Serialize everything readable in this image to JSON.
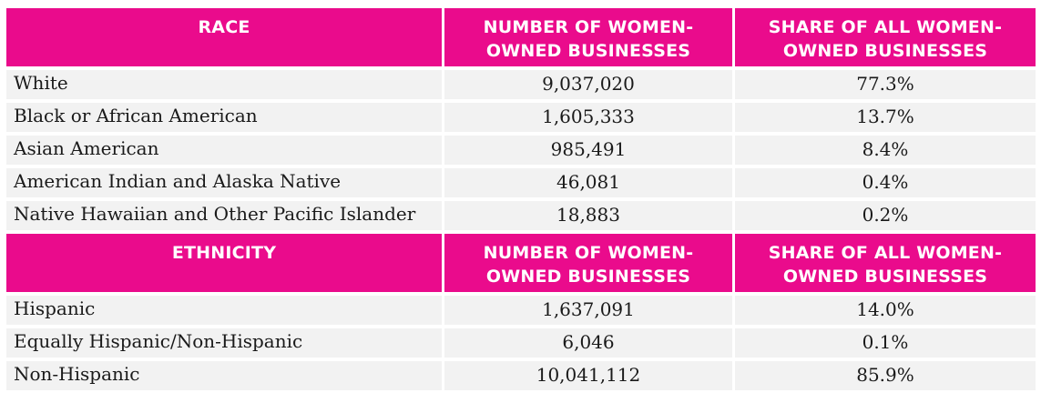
{
  "race_header": {
    "col1": "RACE",
    "col2_line1": "NUMBER OF WOMEN-",
    "col2_line2": "OWNED BUSINESSES",
    "col3_line1": "SHARE OF ALL WOMEN-",
    "col3_line2": "OWNED BUSINESSES"
  },
  "race_rows": [
    {
      "name": "White",
      "number": "9,037,020",
      "share": "77.3%"
    },
    {
      "name": "Black or African American",
      "number": "1,605,333",
      "share": "13.7%"
    },
    {
      "name": "Asian American",
      "number": "985,491",
      "share": "8.4%"
    },
    {
      "name": "American Indian and Alaska Native",
      "number": "46,081",
      "share": "0.4%"
    },
    {
      "name": "Native Hawaiian and Other Pacific Islander",
      "number": "18,883",
      "share": "0.2%"
    }
  ],
  "ethnicity_header": {
    "col1": "ETHNICITY",
    "col2_line1": "NUMBER OF WOMEN-",
    "col2_line2": "OWNED BUSINESSES",
    "col3_line1": "SHARE OF ALL WOMEN-",
    "col3_line2": "OWNED BUSINESSES"
  },
  "ethnicity_rows": [
    {
      "name": "Hispanic",
      "number": "1,637,091",
      "share": "14.0%"
    },
    {
      "name": "Equally Hispanic/Non-Hispanic",
      "number": "6,046",
      "share": "0.1%"
    },
    {
      "name": "Non-Hispanic",
      "number": "10,041,112",
      "share": "85.9%"
    }
  ],
  "colors": {
    "header_bg": "#ea0b8c",
    "header_text": "#ffffff",
    "row_bg": "#f2f2f2"
  }
}
